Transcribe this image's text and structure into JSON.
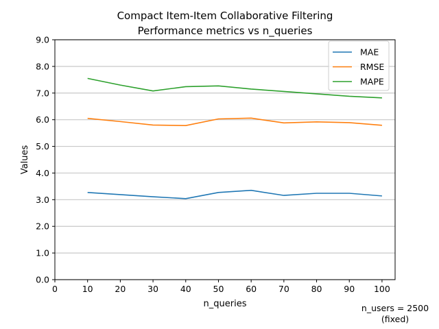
{
  "chart_data": {
    "type": "line",
    "title_line1": "Compact Item-Item Collaborative Filtering",
    "title_line2": "Performance metrics vs n_queries",
    "xlabel": "n_queries",
    "ylabel": "Values",
    "x": [
      10,
      20,
      30,
      40,
      50,
      60,
      70,
      80,
      90,
      100
    ],
    "xlim": [
      0,
      104
    ],
    "ylim": [
      0,
      9
    ],
    "xticks": [
      0,
      10,
      20,
      30,
      40,
      50,
      60,
      70,
      80,
      90,
      100
    ],
    "yticks": [
      0,
      1,
      2,
      3,
      4,
      5,
      6,
      7,
      8,
      9
    ],
    "xtick_labels": [
      "0",
      "10",
      "20",
      "30",
      "40",
      "50",
      "60",
      "70",
      "80",
      "90",
      "100"
    ],
    "ytick_labels": [
      "0.0",
      "1.0",
      "2.0",
      "3.0",
      "4.0",
      "5.0",
      "6.0",
      "7.0",
      "8.0",
      "9.0"
    ],
    "grid": "horizontal",
    "legend_position": "top-right",
    "series": [
      {
        "name": "MAE",
        "color": "#1f77b4",
        "values": [
          3.27,
          3.19,
          3.11,
          3.04,
          3.27,
          3.35,
          3.16,
          3.24,
          3.24,
          3.14
        ]
      },
      {
        "name": "RMSE",
        "color": "#ff7f0e",
        "values": [
          6.05,
          5.93,
          5.8,
          5.78,
          6.03,
          6.06,
          5.88,
          5.92,
          5.89,
          5.79
        ]
      },
      {
        "name": "MAPE",
        "color": "#2ca02c",
        "values": [
          7.55,
          7.3,
          7.08,
          7.24,
          7.27,
          7.15,
          7.06,
          6.97,
          6.88,
          6.82
        ]
      }
    ],
    "annotation_line1": "n_users = 2500",
    "annotation_line2": "(fixed)"
  }
}
